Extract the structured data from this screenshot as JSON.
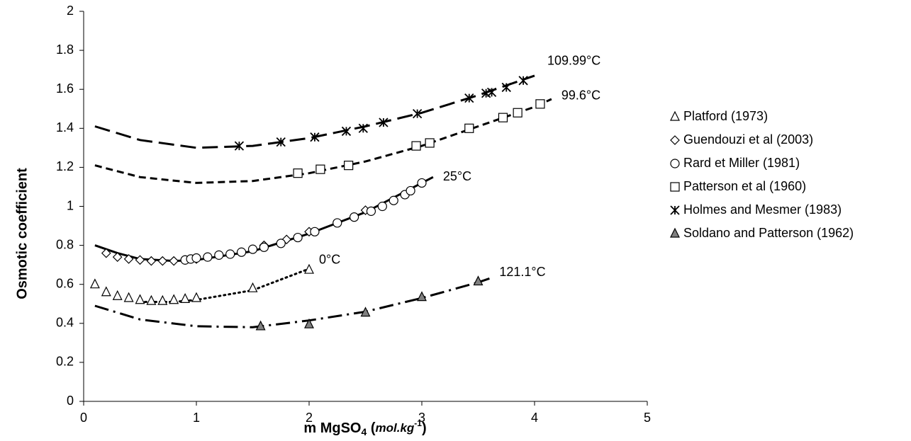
{
  "chart_data": {
    "type": "scatter",
    "ylabel": "Osmotic coefficient",
    "xlabel": [
      {
        "text": "m MgSO"
      },
      {
        "text": "4",
        "style": "sub"
      },
      {
        "text": " ("
      },
      {
        "text": "mol.kg",
        "style": "italic"
      },
      {
        "text": "-1",
        "style": "sup"
      },
      {
        "text": ")"
      }
    ],
    "xlim": [
      0,
      5
    ],
    "xticks": [
      0,
      1,
      2,
      3,
      4,
      5
    ],
    "ylim": [
      0,
      2
    ],
    "yticks": [
      0,
      0.2,
      0.4,
      0.6,
      0.8,
      1,
      1.2,
      1.4,
      1.6,
      1.8,
      2
    ],
    "grid": false,
    "legend": "right",
    "series": [
      {
        "name": "Platford (1973)",
        "marker": "triangle",
        "color": "#ffffff",
        "x": [
          0.1,
          0.2,
          0.3,
          0.4,
          0.5,
          0.6,
          0.7,
          0.8,
          0.9,
          1.0,
          1.5,
          2.0
        ],
        "values": [
          0.6,
          0.56,
          0.54,
          0.53,
          0.52,
          0.515,
          0.515,
          0.52,
          0.525,
          0.53,
          0.58,
          0.675
        ]
      },
      {
        "name": "Guendouzi et al (2003)",
        "marker": "diamond",
        "color": "#ffffff",
        "x": [
          0.2,
          0.3,
          0.4,
          0.5,
          0.6,
          0.7,
          0.8,
          0.9,
          1.0,
          1.6,
          1.8,
          2.0,
          2.5
        ],
        "values": [
          0.76,
          0.74,
          0.73,
          0.725,
          0.72,
          0.72,
          0.72,
          0.725,
          0.73,
          0.8,
          0.83,
          0.87,
          0.98
        ]
      },
      {
        "name": "Rard et Miller (1981)",
        "marker": "circle",
        "color": "#ffffff",
        "x": [
          0.9,
          0.95,
          1.0,
          1.1,
          1.2,
          1.3,
          1.4,
          1.5,
          1.6,
          1.75,
          1.9,
          2.05,
          2.25,
          2.4,
          2.55,
          2.65,
          2.75,
          2.85,
          2.9,
          3.0
        ],
        "values": [
          0.725,
          0.73,
          0.735,
          0.74,
          0.75,
          0.755,
          0.765,
          0.78,
          0.79,
          0.81,
          0.84,
          0.87,
          0.915,
          0.945,
          0.975,
          1.0,
          1.03,
          1.06,
          1.08,
          1.12
        ]
      },
      {
        "name": "Patterson et al (1960)",
        "marker": "square",
        "color": "#ffffff",
        "x": [
          1.9,
          2.1,
          2.35,
          2.95,
          3.07,
          3.42,
          3.72,
          3.85,
          4.05
        ],
        "values": [
          1.17,
          1.19,
          1.21,
          1.31,
          1.325,
          1.4,
          1.455,
          1.48,
          1.525
        ]
      },
      {
        "name": "Holmes and Mesmer (1983)",
        "marker": "asterisk",
        "color": "#000000",
        "x": [
          1.38,
          1.75,
          2.05,
          2.33,
          2.48,
          2.66,
          2.96,
          3.42,
          3.57,
          3.62,
          3.75,
          3.9
        ],
        "values": [
          1.31,
          1.33,
          1.355,
          1.385,
          1.4,
          1.43,
          1.475,
          1.555,
          1.58,
          1.585,
          1.61,
          1.645
        ]
      },
      {
        "name": "Soldano and Patterson (1962)",
        "marker": "triangle",
        "color": "#808080",
        "x": [
          1.57,
          2.0,
          2.5,
          3.0,
          3.5
        ],
        "values": [
          0.385,
          0.395,
          0.455,
          0.535,
          0.615
        ]
      }
    ],
    "curves": [
      {
        "label": "109.99°C",
        "dash": "long",
        "x": [
          0.1,
          0.5,
          1,
          1.5,
          2,
          2.5,
          3,
          3.5,
          4.0
        ],
        "values": [
          1.41,
          1.34,
          1.3,
          1.31,
          1.35,
          1.41,
          1.48,
          1.57,
          1.67
        ]
      },
      {
        "label": "99.6°C",
        "dash": "short",
        "x": [
          0.1,
          0.5,
          1,
          1.5,
          2,
          2.5,
          3,
          3.5,
          4.0,
          4.15
        ],
        "values": [
          1.21,
          1.15,
          1.12,
          1.13,
          1.17,
          1.23,
          1.31,
          1.41,
          1.51,
          1.55
        ]
      },
      {
        "label": "25°C",
        "dash": "solid",
        "x": [
          0.1,
          0.3,
          0.5,
          0.8,
          1,
          1.5,
          2,
          2.5,
          3,
          3.1
        ],
        "values": [
          0.8,
          0.76,
          0.73,
          0.72,
          0.725,
          0.77,
          0.86,
          0.97,
          1.12,
          1.15
        ]
      },
      {
        "label": "0°C",
        "dash": "dotted",
        "x": [
          0.5,
          0.8,
          1,
          1.5,
          2
        ],
        "values": [
          0.51,
          0.51,
          0.52,
          0.57,
          0.68
        ]
      },
      {
        "label": "121.1°C",
        "dash": "dashdot",
        "x": [
          0.1,
          0.5,
          1,
          1.5,
          2,
          2.5,
          3,
          3.5,
          3.6
        ],
        "values": [
          0.49,
          0.42,
          0.385,
          0.38,
          0.415,
          0.46,
          0.53,
          0.61,
          0.63
        ]
      }
    ]
  }
}
